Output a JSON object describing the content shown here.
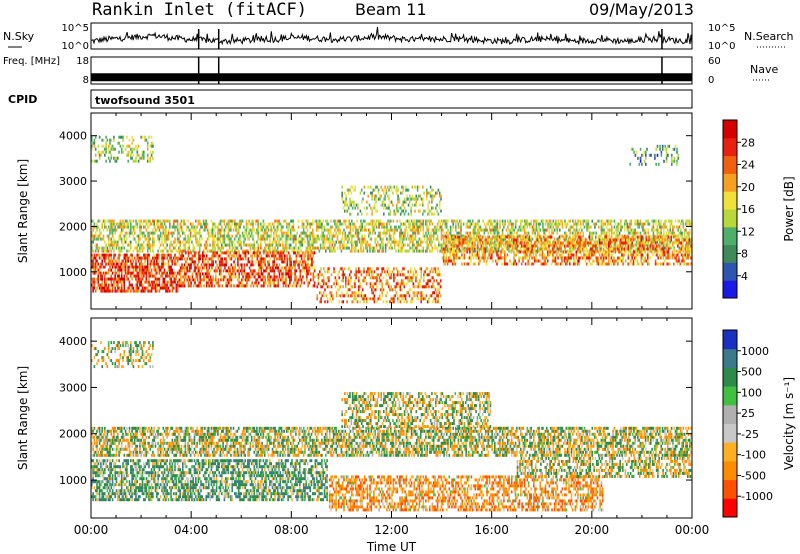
{
  "header": {
    "site": "Rankin Inlet (fitACF)",
    "beam": "Beam 11",
    "date": "09/May/2013"
  },
  "colors": {
    "frame": "#000000",
    "power_scale": [
      "#1a1ae6",
      "#2e55b0",
      "#3f8a5a",
      "#4fae6a",
      "#b8d83a",
      "#f0e03a",
      "#f5a020",
      "#f06010",
      "#e82010",
      "#d40000"
    ],
    "velocity_scale": [
      "#ff0000",
      "#ff5000",
      "#ff8c00",
      "#ffb020",
      "#c8c8c8",
      "#b0b0b0",
      "#40c040",
      "#2e8a4a",
      "#3a7a8a",
      "#1a30c0"
    ]
  },
  "chart_data": [
    {
      "type": "line",
      "title": "N.Sky",
      "panel": "noise",
      "ylabel_left": "N.Sky",
      "ylabel_right": "N.Search",
      "ylim_log": [
        0,
        5
      ],
      "ytick_labels": [
        "10^5",
        "10^0"
      ],
      "xlim_hours": [
        0,
        24
      ],
      "series": [
        {
          "name": "N.Sky",
          "style": "solid",
          "x": [
            0,
            0.5,
            1,
            1.5,
            2,
            2.5,
            3,
            3.5,
            4,
            4.5,
            5,
            5.5,
            6,
            6.5,
            7,
            7.5,
            8,
            8.5,
            9,
            9.5,
            10,
            10.5,
            11,
            11.5,
            12,
            12.5,
            13,
            13.5,
            14,
            14.5,
            15,
            15.5,
            16,
            16.5,
            17,
            17.5,
            18,
            18.5,
            19,
            19.5,
            20,
            20.5,
            21,
            21.5,
            22,
            22.5,
            23,
            23.5,
            24
          ],
          "y": [
            1.5,
            1.8,
            2.0,
            2.2,
            2.4,
            2.6,
            2.3,
            2.0,
            1.8,
            1.7,
            1.6,
            1.5,
            1.6,
            1.7,
            1.8,
            1.9,
            2.1,
            2.2,
            2.0,
            1.9,
            1.8,
            2.0,
            2.2,
            2.3,
            2.1,
            1.9,
            1.8,
            1.7,
            1.9,
            2.0,
            1.8,
            1.7,
            1.6,
            1.5,
            1.6,
            1.8,
            1.9,
            1.7,
            1.6,
            1.5,
            1.7,
            1.8,
            1.6,
            1.5,
            1.7,
            1.9,
            1.8,
            1.6,
            1.5
          ]
        }
      ]
    },
    {
      "type": "line",
      "title": "Freq.",
      "panel": "frequency",
      "ylabel_left": "Freq. [MHz]",
      "ylabel_right": "Nave",
      "ylim_left": [
        8,
        18
      ],
      "ylim_right": [
        0,
        60
      ],
      "ytick_labels_left": [
        "18",
        "8"
      ],
      "ytick_labels_right": [
        "60",
        "0"
      ],
      "xlim_hours": [
        0,
        24
      ],
      "series": [
        {
          "name": "Freq. [MHz]",
          "x": [
            0,
            24
          ],
          "y": [
            10.5,
            10.5
          ]
        },
        {
          "name": "Nave",
          "x": [
            0,
            24
          ],
          "y": [
            22,
            22
          ]
        }
      ]
    },
    {
      "type": "heatmap",
      "panel": "cpid",
      "ylabel": "CPID",
      "annotation": "twofsound 3501"
    },
    {
      "type": "heatmap",
      "panel": "power",
      "ylabel": "Slant Range [km]",
      "colorbar_label": "Power [dB]",
      "colorbar_ticks": [
        "28",
        "24",
        "20",
        "16",
        "12",
        "8",
        "4"
      ],
      "colorbar_range": [
        0,
        32
      ],
      "ylim": [
        180,
        4500
      ],
      "yticks": [
        1000,
        2000,
        3000,
        4000
      ],
      "xlim_hours": [
        0,
        24
      ],
      "bands": [
        {
          "t_start": 0.0,
          "t_end": 24.0,
          "range_low": 1400,
          "range_high": 2150,
          "value": 16,
          "density": 0.55
        },
        {
          "t_start": 0.0,
          "t_end": 3.5,
          "range_low": 500,
          "range_high": 1400,
          "value": 26,
          "density": 0.65
        },
        {
          "t_start": 3.5,
          "t_end": 9.0,
          "range_low": 650,
          "range_high": 1450,
          "value": 25,
          "density": 0.55
        },
        {
          "t_start": 9.0,
          "t_end": 14.0,
          "range_low": 250,
          "range_high": 1100,
          "value": 22,
          "density": 0.4
        },
        {
          "t_start": 14.0,
          "t_end": 24.0,
          "range_low": 1100,
          "range_high": 1800,
          "value": 22,
          "density": 0.5
        },
        {
          "t_start": 0.0,
          "t_end": 2.5,
          "range_low": 3400,
          "range_high": 4000,
          "value": 14,
          "density": 0.3
        },
        {
          "t_start": 10.0,
          "t_end": 14.0,
          "range_low": 2200,
          "range_high": 2900,
          "value": 14,
          "density": 0.35
        },
        {
          "t_start": 21.5,
          "t_end": 23.5,
          "range_low": 3300,
          "range_high": 3800,
          "value": 10,
          "density": 0.2
        }
      ]
    },
    {
      "type": "heatmap",
      "panel": "velocity",
      "xlabel": "Time UT",
      "ylabel": "Slant Range [km]",
      "colorbar_label": "Velocity [m s⁻¹]",
      "colorbar_ticks": [
        "1000",
        "500",
        "100",
        "25",
        "-25",
        "-100",
        "-500",
        "-1000"
      ],
      "ylim": [
        180,
        4500
      ],
      "yticks": [
        1000,
        2000,
        3000,
        4000
      ],
      "xlim_hours": [
        0,
        24
      ],
      "xtick_labels": [
        "00:00",
        "04:00",
        "08:00",
        "12:00",
        "16:00",
        "20:00",
        "00:00"
      ],
      "bands": [
        {
          "t_start": 0.0,
          "t_end": 24.0,
          "range_low": 1450,
          "range_high": 2150,
          "value": 0,
          "density": 0.6
        },
        {
          "t_start": 0.0,
          "t_end": 9.5,
          "range_low": 500,
          "range_high": 1450,
          "value": 150,
          "density": 0.6
        },
        {
          "t_start": 9.5,
          "t_end": 20.5,
          "range_low": 300,
          "range_high": 1100,
          "value": -200,
          "density": 0.5
        },
        {
          "t_start": 10.0,
          "t_end": 16.0,
          "range_low": 2100,
          "range_high": 2900,
          "value": 0,
          "density": 0.45
        },
        {
          "t_start": 0.0,
          "t_end": 2.5,
          "range_low": 3400,
          "range_high": 4000,
          "value": 0,
          "density": 0.3
        },
        {
          "t_start": 17.0,
          "t_end": 24.0,
          "range_low": 1000,
          "range_high": 1500,
          "value": 0,
          "density": 0.45
        }
      ]
    }
  ]
}
